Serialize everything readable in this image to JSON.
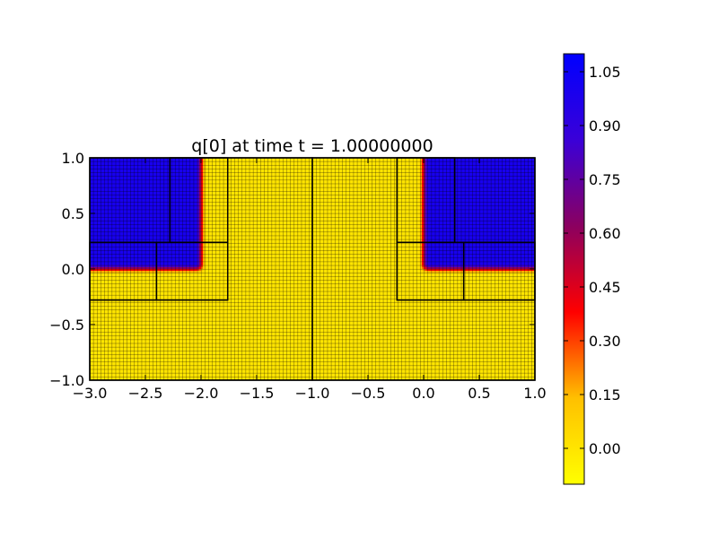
{
  "chart_data": {
    "type": "heatmap",
    "title": "q[0] at time t =      1.00000000",
    "xlim": [
      -3.0,
      1.0
    ],
    "ylim": [
      -1.0,
      1.0
    ],
    "xticks": [
      {
        "value": -3.0,
        "label": "−3.0"
      },
      {
        "value": -2.5,
        "label": "−2.5"
      },
      {
        "value": -2.0,
        "label": "−2.0"
      },
      {
        "value": -1.5,
        "label": "−1.5"
      },
      {
        "value": -1.0,
        "label": "−1.0"
      },
      {
        "value": -0.5,
        "label": "−0.5"
      },
      {
        "value": 0.0,
        "label": "0.0"
      },
      {
        "value": 0.5,
        "label": "0.5"
      },
      {
        "value": 1.0,
        "label": "1.0"
      }
    ],
    "yticks": [
      {
        "value": -1.0,
        "label": "−1.0"
      },
      {
        "value": -0.5,
        "label": "−0.5"
      },
      {
        "value": 0.0,
        "label": "0.0"
      },
      {
        "value": 0.5,
        "label": "0.5"
      },
      {
        "value": 1.0,
        "label": "1.0"
      }
    ],
    "colorbar": {
      "range": [
        -0.1,
        1.1
      ],
      "colors": [
        "#ffff00",
        "#ffc000",
        "#ff0000",
        "#8b0060",
        "#3a00d8",
        "#0000ff"
      ],
      "ticks": [
        {
          "value": 0.0,
          "label": "0.00"
        },
        {
          "value": 0.15,
          "label": "0.15"
        },
        {
          "value": 0.3,
          "label": "0.30"
        },
        {
          "value": 0.45,
          "label": "0.45"
        },
        {
          "value": 0.6,
          "label": "0.60"
        },
        {
          "value": 0.75,
          "label": "0.75"
        },
        {
          "value": 0.9,
          "label": "0.90"
        },
        {
          "value": 1.05,
          "label": "1.05"
        }
      ]
    },
    "grid": true,
    "fields": [
      {
        "corner_x": -2.0,
        "corner_y": 0.0,
        "orientation": "left"
      },
      {
        "corner_x": 0.0,
        "corner_y": 0.0,
        "orientation": "right"
      }
    ],
    "field_values": {
      "high": 1.0,
      "low": 0.0,
      "transition_width": 0.1
    },
    "patches": [
      {
        "x": [
          -3.0,
          1.0
        ],
        "y": [
          -1.0,
          1.0
        ]
      },
      {
        "x": [
          -3.0,
          -1.0
        ],
        "y": [
          -1.0,
          1.0
        ]
      },
      {
        "x": [
          -1.0,
          1.0
        ],
        "y": [
          -1.0,
          1.0
        ]
      },
      {
        "x": [
          -3.0,
          -2.4
        ],
        "y": [
          -0.28,
          0.24
        ]
      },
      {
        "x": [
          -2.4,
          -1.76
        ],
        "y": [
          -0.28,
          0.24
        ]
      },
      {
        "x": [
          -2.28,
          -1.76
        ],
        "y": [
          0.24,
          1.0
        ]
      },
      {
        "x": [
          -0.24,
          0.36
        ],
        "y": [
          -0.28,
          0.24
        ]
      },
      {
        "x": [
          0.36,
          1.0
        ],
        "y": [
          -0.28,
          0.24
        ]
      },
      {
        "x": [
          -0.24,
          0.28
        ],
        "y": [
          0.24,
          1.0
        ]
      }
    ]
  }
}
